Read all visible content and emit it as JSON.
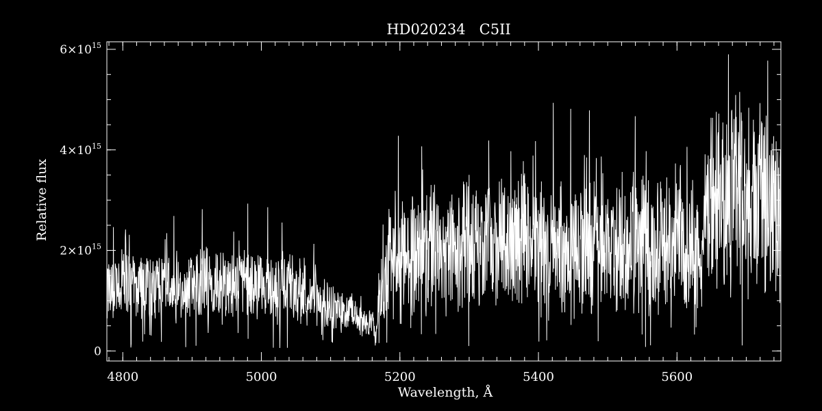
{
  "chart_data": {
    "type": "line",
    "title": "HD020234   C5II",
    "xlabel": "Wavelength, Å",
    "ylabel": "Relative flux",
    "xlim": [
      4777,
      5750
    ],
    "ylim": [
      -200000000000000.0,
      6150000000000000.0
    ],
    "x_ticks": [
      {
        "value": 4800,
        "label": "4800"
      },
      {
        "value": 5000,
        "label": "5000"
      },
      {
        "value": 5200,
        "label": "5200"
      },
      {
        "value": 5400,
        "label": "5400"
      },
      {
        "value": 5600,
        "label": "5600"
      }
    ],
    "y_ticks": [
      {
        "value": 0,
        "mantissa": "0",
        "exponent": ""
      },
      {
        "value": 2000000000000000.0,
        "mantissa": "2×10",
        "exponent": "15"
      },
      {
        "value": 4000000000000000.0,
        "mantissa": "4×10",
        "exponent": "15"
      },
      {
        "value": 6000000000000000.0,
        "mantissa": "6×10",
        "exponent": "15"
      }
    ],
    "x_minor_step": 20,
    "y_minor_step": 500000000000000.0,
    "grid": false,
    "colors": {
      "background": "#000000",
      "foreground": "#ffffff",
      "line": "#ffffff"
    },
    "series": [
      {
        "x": [
          4777,
          4790,
          4800,
          4810,
          4820,
          4830,
          4840,
          4850,
          4860,
          4870,
          4880,
          4890,
          4900,
          4910,
          4920,
          4930,
          4940,
          4950,
          4960,
          4970,
          4980,
          4990,
          5000,
          5010,
          5020,
          5030,
          5040,
          5050,
          5060,
          5070,
          5080,
          5090,
          5100,
          5110,
          5120,
          5130,
          5140,
          5150,
          5160,
          5165,
          5168,
          5170,
          5175,
          5180,
          5190,
          5200,
          5210,
          5220,
          5230,
          5240,
          5250,
          5260,
          5270,
          5280,
          5290,
          5300,
          5310,
          5320,
          5330,
          5340,
          5350,
          5360,
          5370,
          5380,
          5390,
          5400,
          5410,
          5420,
          5430,
          5440,
          5450,
          5460,
          5470,
          5480,
          5490,
          5500,
          5510,
          5520,
          5530,
          5540,
          5550,
          5560,
          5570,
          5580,
          5590,
          5600,
          5610,
          5620,
          5630,
          5635,
          5640,
          5650,
          5660,
          5670,
          5680,
          5690,
          5700,
          5710,
          5720,
          5730,
          5740,
          5750
        ],
        "y": [
          1200000000000000.0,
          1250000000000000.0,
          1350000000000000.0,
          1300000000000000.0,
          1250000000000000.0,
          1350000000000000.0,
          1300000000000000.0,
          1200000000000000.0,
          1250000000000000.0,
          1350000000000000.0,
          1300000000000000.0,
          1250000000000000.0,
          1300000000000000.0,
          1350000000000000.0,
          1400000000000000.0,
          1300000000000000.0,
          1250000000000000.0,
          1350000000000000.0,
          1400000000000000.0,
          1450000000000000.0,
          1350000000000000.0,
          1300000000000000.0,
          1300000000000000.0,
          1350000000000000.0,
          1200000000000000.0,
          1300000000000000.0,
          1350000000000000.0,
          1150000000000000.0,
          1050000000000000.0,
          1000000000000000.0,
          950000000000000.0,
          950000000000000.0,
          900000000000000.0,
          850000000000000.0,
          750000000000000.0,
          700000000000000.0,
          650000000000000.0,
          580000000000000.0,
          520000000000000.0,
          450000000000000.0,
          550000000000000.0,
          1300000000000000.0,
          1500000000000000.0,
          1700000000000000.0,
          1750000000000000.0,
          1800000000000000.0,
          1850000000000000.0,
          1900000000000000.0,
          1900000000000000.0,
          1950000000000000.0,
          2000000000000000.0,
          1950000000000000.0,
          1900000000000000.0,
          2000000000000000.0,
          2050000000000000.0,
          2000000000000000.0,
          2050000000000000.0,
          2100000000000000.0,
          2150000000000000.0,
          2050000000000000.0,
          2100000000000000.0,
          2150000000000000.0,
          2100000000000000.0,
          2150000000000000.0,
          2200000000000000.0,
          2100000000000000.0,
          2000000000000000.0,
          2050000000000000.0,
          2000000000000000.0,
          2050000000000000.0,
          2100000000000000.0,
          2150000000000000.0,
          2050000000000000.0,
          2000000000000000.0,
          2050000000000000.0,
          2100000000000000.0,
          2000000000000000.0,
          2050000000000000.0,
          2100000000000000.0,
          2150000000000000.0,
          2200000000000000.0,
          2100000000000000.0,
          2150000000000000.0,
          2100000000000000.0,
          2200000000000000.0,
          2250000000000000.0,
          2150000000000000.0,
          2100000000000000.0,
          2000000000000000.0,
          1500000000000000.0,
          2700000000000000.0,
          2900000000000000.0,
          2950000000000000.0,
          3000000000000000.0,
          3100000000000000.0,
          2950000000000000.0,
          3000000000000000.0,
          3050000000000000.0,
          3000000000000000.0,
          2900000000000000.0,
          2800000000000000.0,
          2600000000000000.0
        ]
      }
    ]
  }
}
